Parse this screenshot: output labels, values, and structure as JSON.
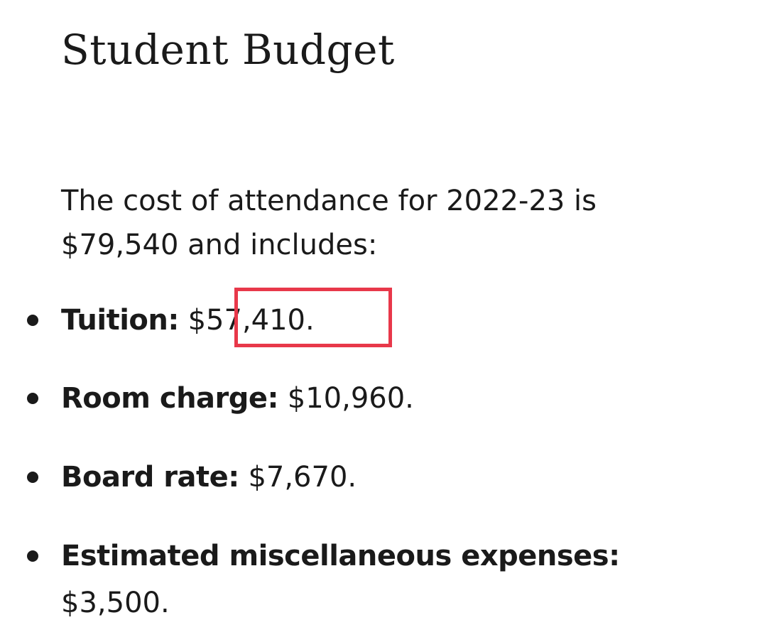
{
  "heading": {
    "title": "Student Budget"
  },
  "intro": {
    "text": "The cost of attendance for 2022-23 is $79,540 and includes:"
  },
  "items": [
    {
      "label": "Tuition:",
      "value": "$57,410."
    },
    {
      "label": "Room charge:",
      "value": "$10,960."
    },
    {
      "label": "Board rate:",
      "value": "$7,670."
    },
    {
      "label": "Estimated miscellaneous expenses:",
      "value": "$3,500."
    }
  ],
  "annotation": {
    "highlight_color": "#e8384a",
    "highlighted_item": "Tuition value"
  }
}
